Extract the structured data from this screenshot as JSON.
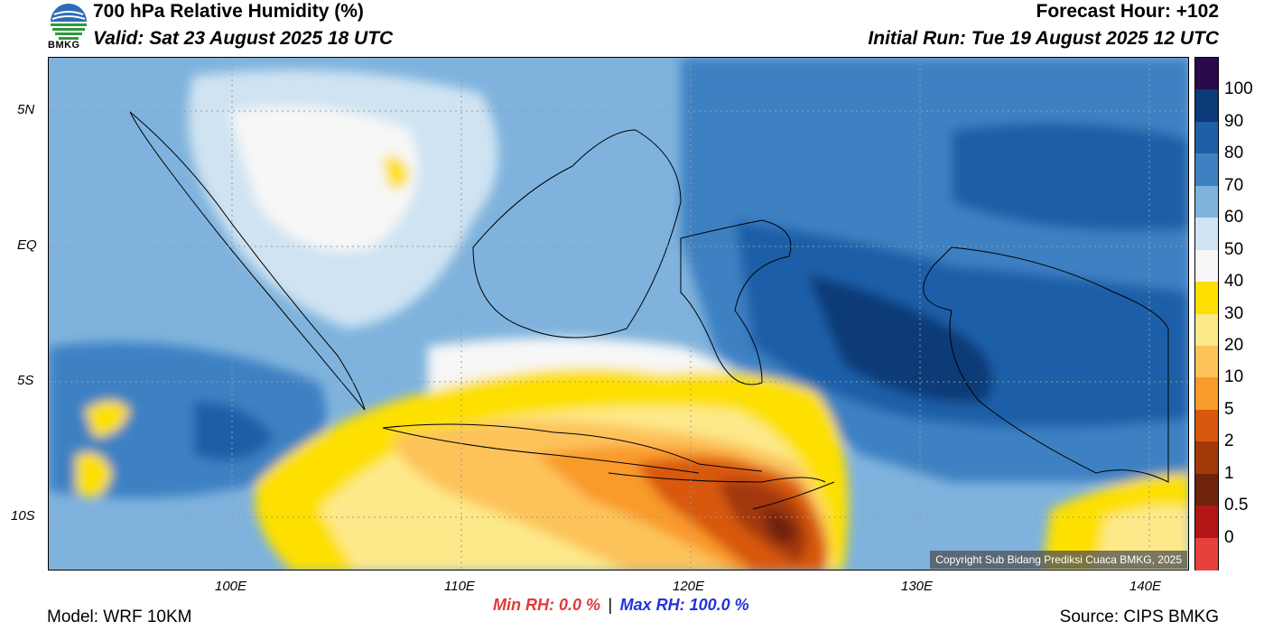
{
  "header": {
    "title": "700 hPa Relative Humidity (%)",
    "valid": "Valid: Sat 23 August 2025 18 UTC",
    "forecast_hour": "Forecast Hour: +102",
    "initial_run": "Initial Run: Tue 19 August 2025 12 UTC"
  },
  "logo": {
    "text": "BMKG",
    "icon": "bmkg-logo-icon"
  },
  "axes": {
    "lat_labels": [
      "5N",
      "EQ",
      "5S",
      "10S"
    ],
    "lon_labels": [
      "100E",
      "110E",
      "120E",
      "130E",
      "140E"
    ]
  },
  "colorbar": {
    "labels": [
      "100",
      "90",
      "80",
      "70",
      "60",
      "50",
      "40",
      "30",
      "20",
      "10",
      "5",
      "2",
      "1",
      "0.5",
      "0"
    ],
    "colors": [
      "#2a0a4a",
      "#0b3a78",
      "#1f5fa8",
      "#3d81c3",
      "#7fb3dd",
      "#cfe3f2",
      "#f7f7f7",
      "#fde000",
      "#fde98a",
      "#fdc35a",
      "#f99a2c",
      "#d8580d",
      "#a33908",
      "#6e230a",
      "#b31616",
      "#e8413c"
    ]
  },
  "stats": {
    "min_rh": "Min RH:   0.0 %",
    "separator": "|",
    "max_rh": "Max RH: 100.0 %"
  },
  "footer": {
    "model": "Model: WRF 10KM",
    "source": "Source: CIPS BMKG",
    "copyright": "Copyright Sub Bidang Prediksi Cuaca BMKG, 2025"
  }
}
